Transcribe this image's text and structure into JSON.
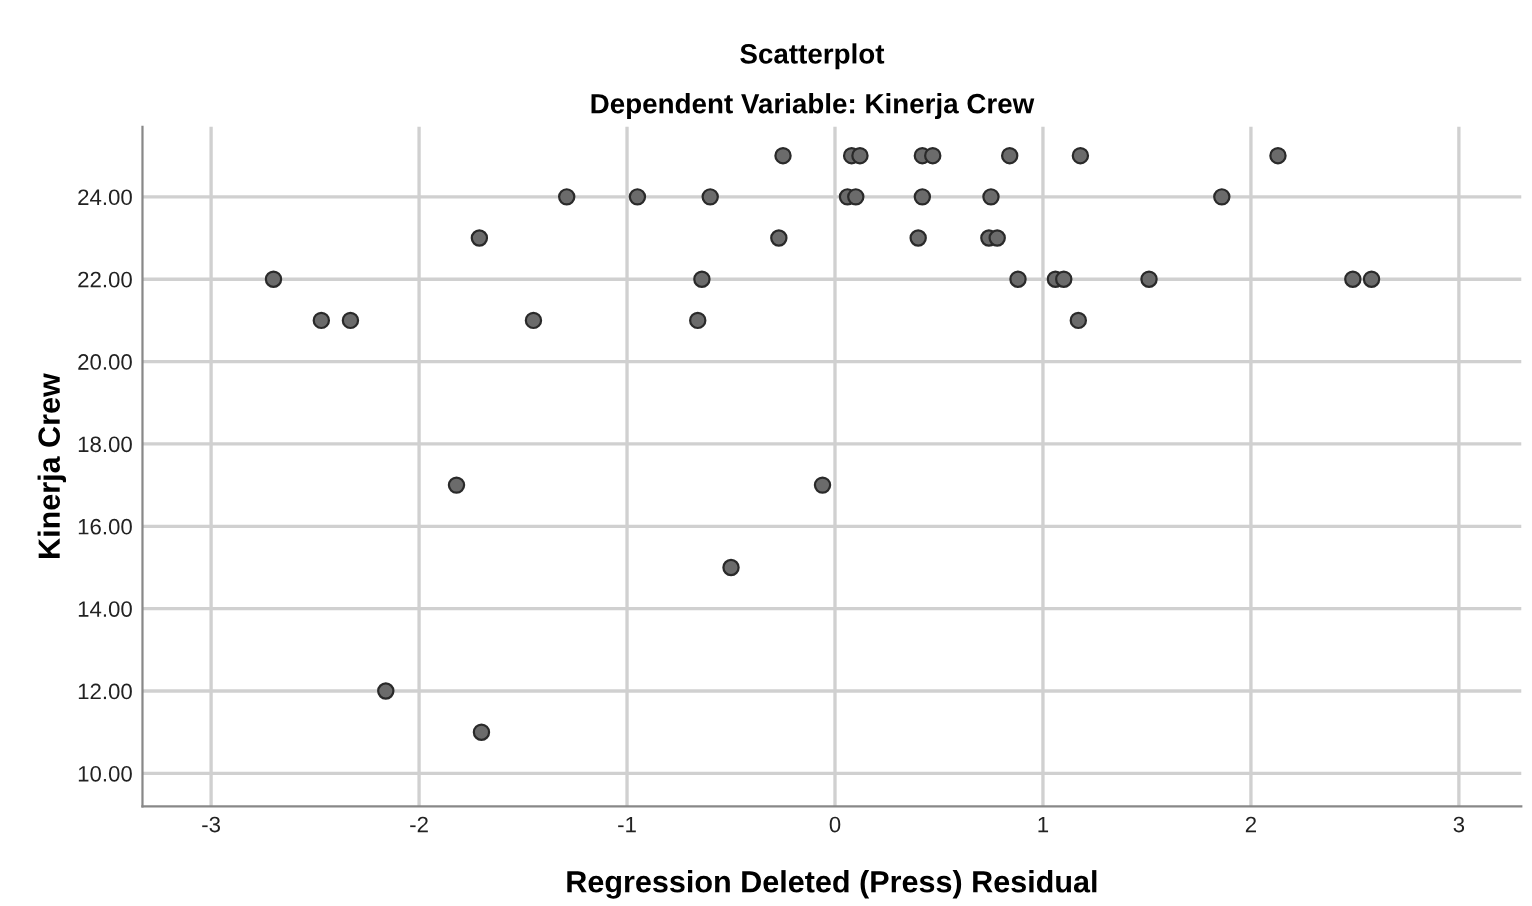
{
  "chart_data": {
    "type": "scatter",
    "title": "Scatterplot",
    "subtitle": "Dependent Variable: Kinerja Crew",
    "xlabel": "Regression Deleted (Press) Residual",
    "ylabel": "Kinerja Crew",
    "x": [
      -2.7,
      -2.47,
      -2.33,
      -1.71,
      -1.45,
      -1.29,
      -0.95,
      -0.6,
      -0.64,
      -0.66,
      -0.27,
      -0.25,
      0.08,
      0.12,
      0.06,
      0.1,
      0.42,
      0.47,
      0.84,
      1.18,
      2.13,
      0.42,
      0.75,
      1.86,
      0.4,
      0.74,
      0.78,
      0.88,
      1.06,
      1.1,
      1.51,
      2.49,
      2.58,
      1.17,
      -1.82,
      -0.06,
      -0.5,
      -2.16,
      -1.7
    ],
    "series": [
      {
        "color": "#6b6b6b",
        "values": [
          22,
          21,
          21,
          23,
          21,
          24,
          24,
          24,
          22,
          21,
          23,
          25,
          25,
          25,
          24,
          24,
          25,
          25,
          25,
          25,
          25,
          24,
          24,
          24,
          23,
          23,
          23,
          22,
          22,
          22,
          22,
          22,
          22,
          21,
          17,
          17,
          15,
          12,
          11
        ]
      }
    ],
    "marker": "circle",
    "grid": true,
    "xlim": [
      -3.33,
      3.3
    ],
    "xticks": [
      -3,
      -2,
      -1,
      0,
      1,
      2,
      3
    ],
    "ylim": [
      9.2,
      25.7
    ],
    "yticks": [
      {
        "value": 10,
        "label": "10.00"
      },
      {
        "value": 12,
        "label": "12.00"
      },
      {
        "value": 14,
        "label": "14.00"
      },
      {
        "value": 16,
        "label": "16.00"
      },
      {
        "value": 18,
        "label": "18.00"
      },
      {
        "value": 20,
        "label": "20.00"
      },
      {
        "value": 22,
        "label": "22.00"
      },
      {
        "value": 24,
        "label": "24.00"
      }
    ]
  }
}
